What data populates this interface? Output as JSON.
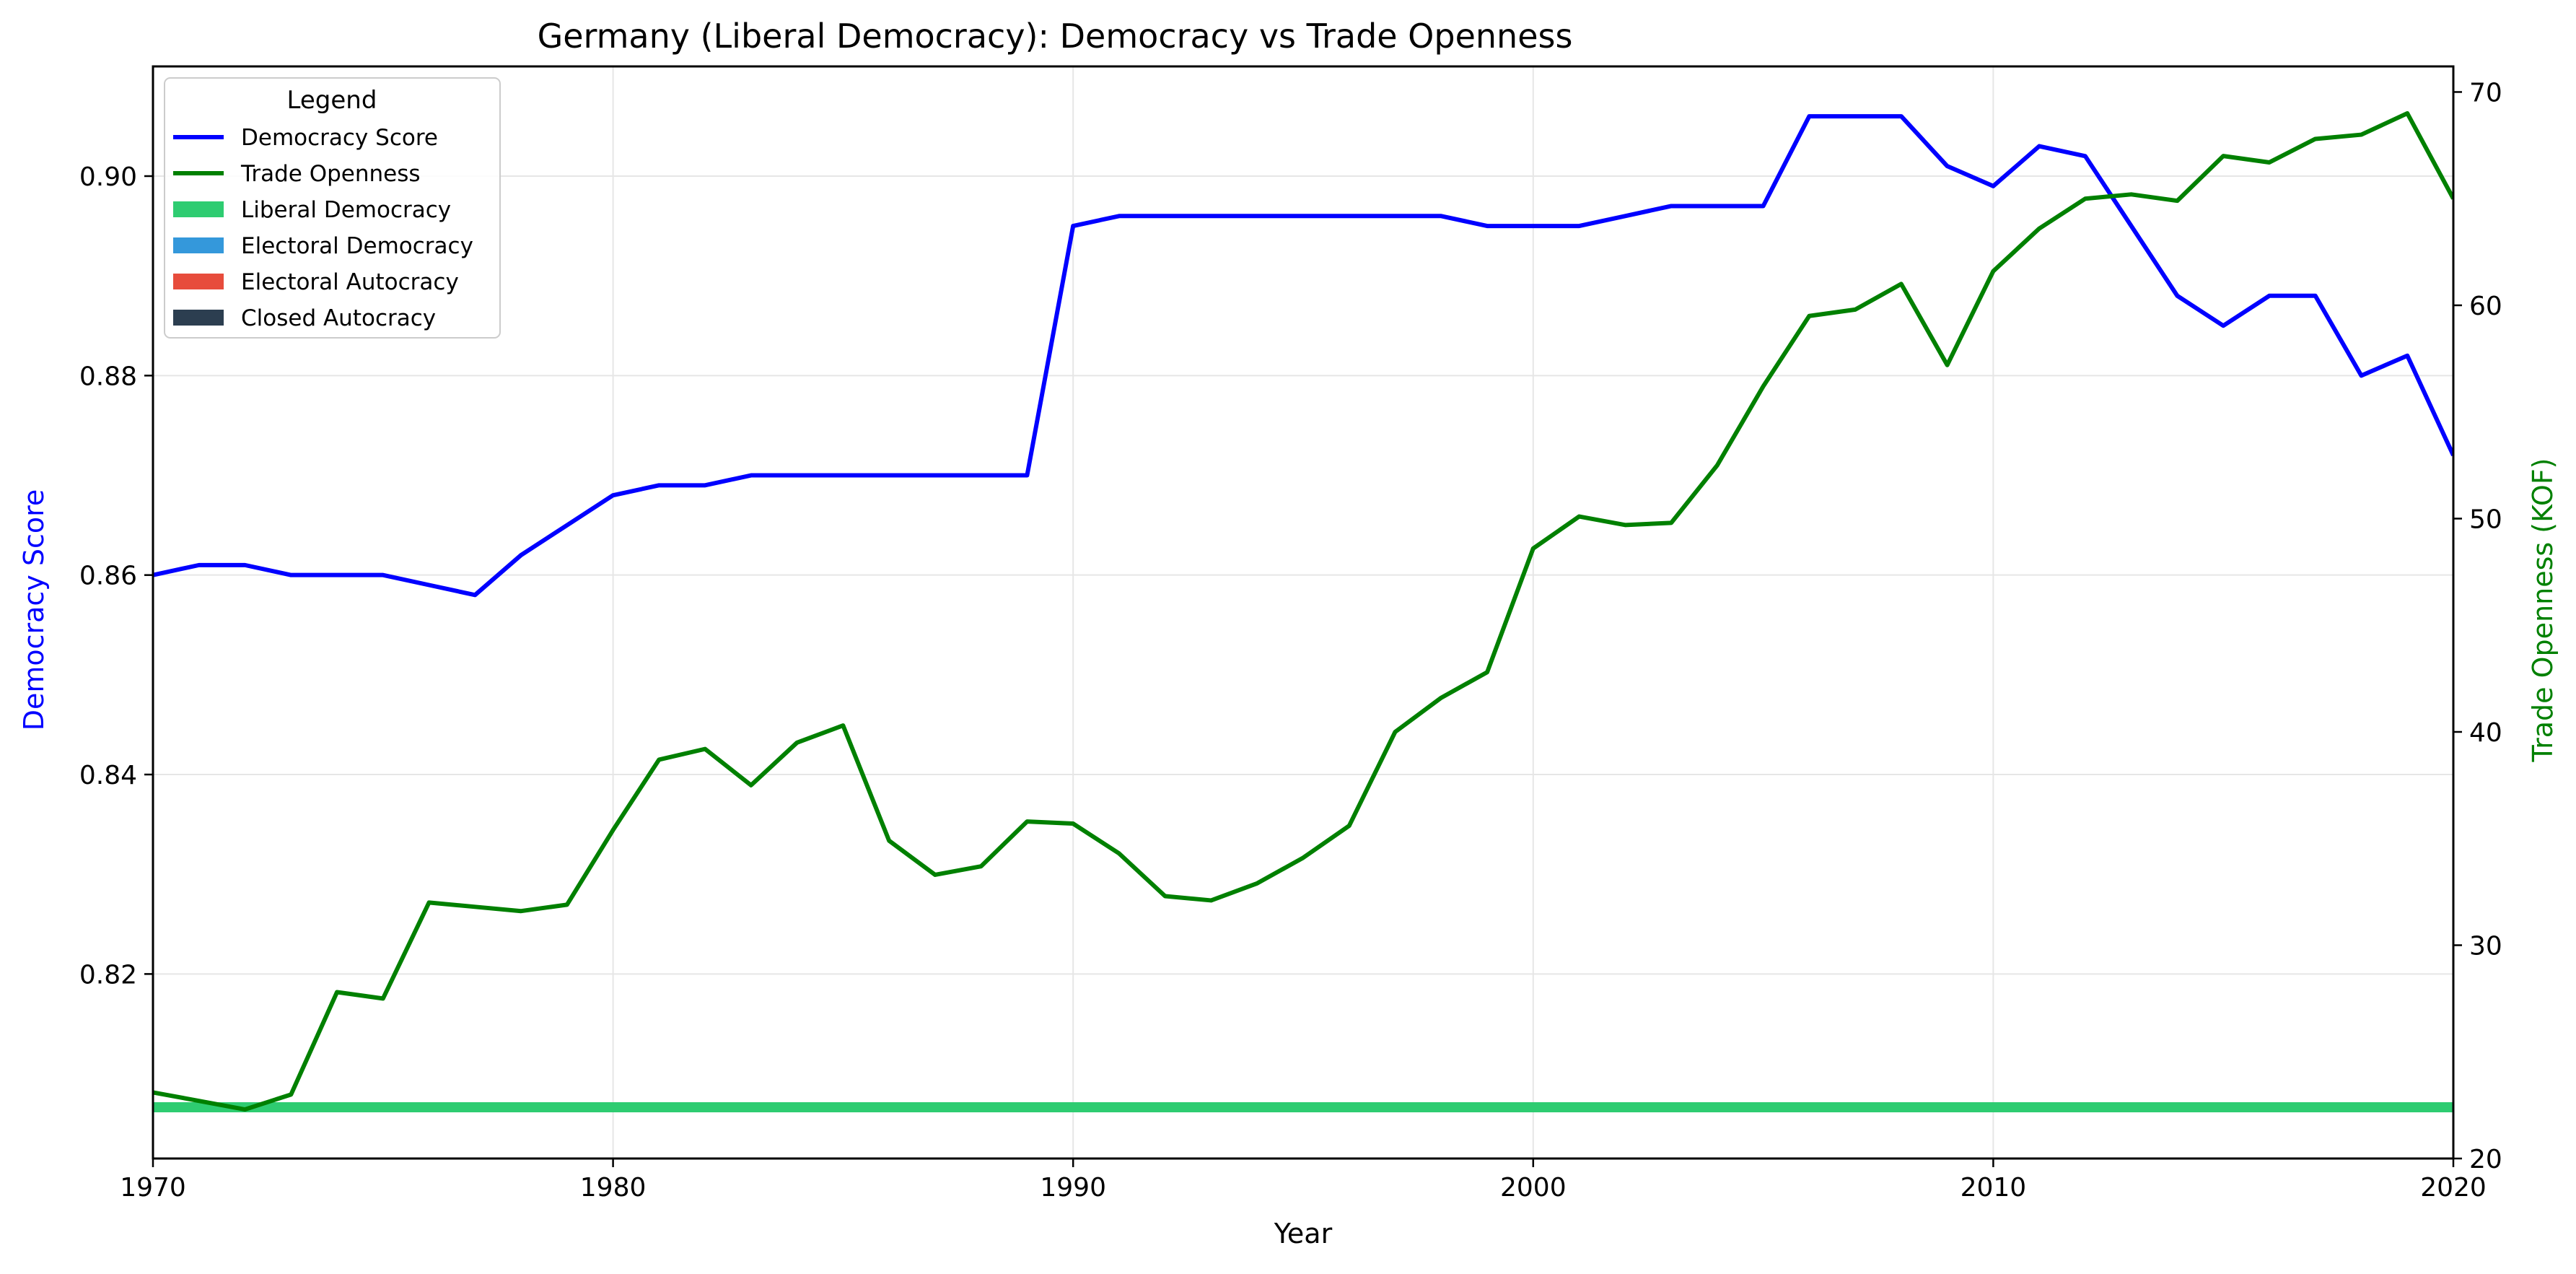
{
  "chart_data": {
    "type": "line",
    "title": "Germany (Liberal Democracy): Democracy vs Trade Openness",
    "xlabel": "Year",
    "ylabel": "Democracy Score",
    "y2label": "Trade Openness (KOF)",
    "xlim": [
      1970,
      2020
    ],
    "ylim": [
      0.8015,
      0.911
    ],
    "y2lim": [
      20,
      71.2
    ],
    "x_ticks": [
      "1970",
      "1980",
      "1990",
      "2000",
      "2010",
      "2020"
    ],
    "y_ticks": [
      "0.82",
      "0.84",
      "0.86",
      "0.88",
      "0.90"
    ],
    "y2_ticks": [
      "20",
      "30",
      "40",
      "50",
      "60",
      "70"
    ],
    "grid": true,
    "legend_placement": "top-left",
    "legend": {
      "title": "Legend",
      "entries": [
        {
          "label": "Democracy Score",
          "kind": "line",
          "color": "#0000ff"
        },
        {
          "label": "Trade Openness",
          "kind": "line",
          "color": "#008000"
        },
        {
          "label": "Liberal Democracy",
          "kind": "patch",
          "color": "#2ecc71"
        },
        {
          "label": "Electoral Democracy",
          "kind": "patch",
          "color": "#3498db"
        },
        {
          "label": "Electoral Autocracy",
          "kind": "patch",
          "color": "#e74c3c"
        },
        {
          "label": "Closed Autocracy",
          "kind": "patch",
          "color": "#2c3e50"
        }
      ]
    },
    "regime_band": {
      "label": "Liberal Democracy",
      "color": "#2ecc71",
      "x_start": 1970,
      "x_end": 2020
    },
    "x": [
      1970,
      1971,
      1972,
      1973,
      1974,
      1975,
      1976,
      1977,
      1978,
      1979,
      1980,
      1981,
      1982,
      1983,
      1984,
      1985,
      1986,
      1987,
      1988,
      1989,
      1990,
      1991,
      1992,
      1993,
      1994,
      1995,
      1996,
      1997,
      1998,
      1999,
      2000,
      2001,
      2002,
      2003,
      2004,
      2005,
      2006,
      2007,
      2008,
      2009,
      2010,
      2011,
      2012,
      2013,
      2014,
      2015,
      2016,
      2017,
      2018,
      2019,
      2020
    ],
    "series": [
      {
        "name": "Democracy Score",
        "axis": "left",
        "color": "#0000ff",
        "values": [
          0.86,
          0.861,
          0.861,
          0.86,
          0.86,
          0.86,
          0.859,
          0.858,
          0.862,
          0.865,
          0.868,
          0.869,
          0.869,
          0.87,
          0.87,
          0.87,
          0.87,
          0.87,
          0.87,
          0.87,
          0.895,
          0.896,
          0.896,
          0.896,
          0.896,
          0.896,
          0.896,
          0.896,
          0.896,
          0.895,
          0.895,
          0.895,
          0.896,
          0.897,
          0.897,
          0.897,
          0.906,
          0.906,
          0.906,
          0.901,
          0.899,
          0.903,
          0.902,
          0.895,
          0.888,
          0.885,
          0.888,
          0.888,
          0.88,
          0.882,
          0.872
        ]
      },
      {
        "name": "Trade Openness",
        "axis": "right",
        "color": "#008000",
        "values": [
          23.1,
          22.7,
          22.3,
          23.0,
          27.8,
          27.5,
          32.0,
          31.8,
          31.6,
          31.9,
          35.4,
          38.7,
          39.2,
          37.5,
          39.5,
          40.3,
          34.9,
          33.3,
          33.7,
          35.8,
          35.7,
          34.3,
          32.3,
          32.1,
          32.9,
          34.1,
          35.6,
          40.0,
          41.6,
          42.8,
          48.6,
          50.1,
          49.7,
          49.8,
          52.5,
          56.2,
          59.5,
          59.8,
          61.0,
          57.2,
          61.6,
          63.6,
          65.0,
          65.2,
          64.9,
          67.0,
          66.7,
          67.8,
          68.0,
          69.0,
          65.0
        ]
      }
    ]
  }
}
